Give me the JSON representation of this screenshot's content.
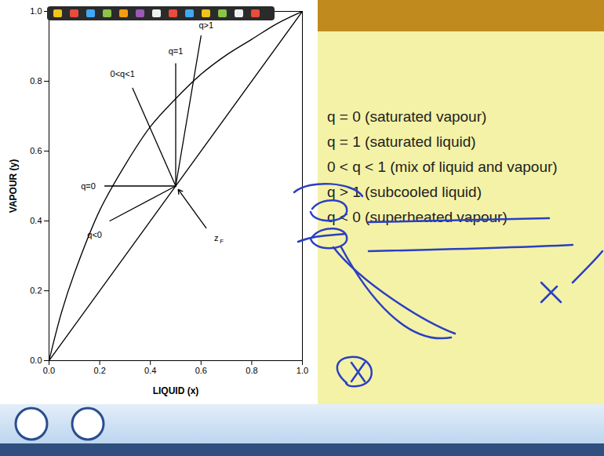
{
  "chart_data": {
    "type": "line",
    "xlabel": "LIQUID (x)",
    "ylabel": "VAPOUR (y)",
    "xlim": [
      0,
      1
    ],
    "ylim": [
      0,
      1
    ],
    "xticks": [
      {
        "value": 0,
        "label": "0.0"
      },
      {
        "value": 0.2,
        "label": "0.2"
      },
      {
        "value": 0.4,
        "label": "0.4"
      },
      {
        "value": 0.6,
        "label": "0.6"
      },
      {
        "value": 0.8,
        "label": "0.8"
      },
      {
        "value": 1,
        "label": "1.0"
      }
    ],
    "yticks": [
      {
        "value": 0,
        "label": "0.0"
      },
      {
        "value": 0.2,
        "label": "0.2"
      },
      {
        "value": 0.4,
        "label": "0.4"
      },
      {
        "value": 0.6,
        "label": "0.6"
      },
      {
        "value": 0.8,
        "label": "0.8"
      },
      {
        "value": 1,
        "label": "1.0"
      }
    ],
    "grid": false,
    "series": [
      {
        "color": "#000000",
        "x": [
          0,
          0.05,
          0.1,
          0.2,
          0.3,
          0.4,
          0.5,
          0.6,
          0.7,
          0.8,
          0.9,
          1.0
        ],
        "values": [
          0,
          0.14,
          0.25,
          0.43,
          0.56,
          0.67,
          0.75,
          0.82,
          0.875,
          0.92,
          0.965,
          1.0
        ]
      },
      {
        "color": "#000000",
        "x": [
          0,
          1
        ],
        "values": [
          0,
          1
        ]
      },
      {
        "color": "#000000",
        "x": [
          0.5,
          0.6
        ],
        "values": [
          0.5,
          0.93
        ]
      },
      {
        "color": "#000000",
        "x": [
          0.5,
          0.5
        ],
        "values": [
          0.5,
          0.85
        ]
      },
      {
        "color": "#000000",
        "x": [
          0.5,
          0.33
        ],
        "values": [
          0.5,
          0.78
        ]
      },
      {
        "color": "#000000",
        "x": [
          0.5,
          0.22
        ],
        "values": [
          0.5,
          0.5
        ]
      },
      {
        "color": "#000000",
        "x": [
          0.5,
          0.24
        ],
        "values": [
          0.5,
          0.4
        ]
      }
    ],
    "annotations": [
      {
        "text": "q>1",
        "x": 0.62,
        "y": 0.96
      },
      {
        "text": "q=1",
        "x": 0.5,
        "y": 0.885
      },
      {
        "text": "0<q<1",
        "x": 0.29,
        "y": 0.82
      },
      {
        "text": "q=0",
        "x": 0.155,
        "y": 0.5
      },
      {
        "text": "q<0",
        "x": 0.18,
        "y": 0.36
      },
      {
        "text": "z",
        "subscript": "F",
        "x": 0.66,
        "y": 0.35,
        "arrow": {
          "x1": 0.62,
          "y1": 0.38,
          "x2": 0.51,
          "y2": 0.49
        }
      }
    ]
  },
  "slide": {
    "points": [
      "q = 0 (saturated vapour)",
      "q = 1 (saturated liquid)",
      "0 < q < 1 (mix of liquid and vapour)",
      "q > 1 (subcooled liquid)",
      "q < 0 (superheated vapour)"
    ]
  }
}
